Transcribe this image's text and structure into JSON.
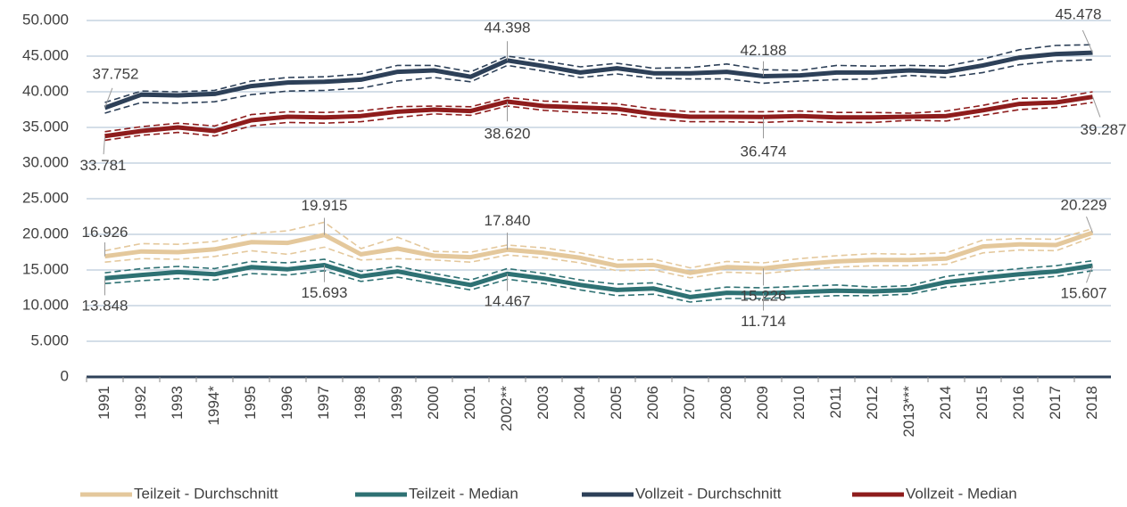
{
  "chart_data": {
    "type": "line",
    "categories": [
      "1991",
      "1992",
      "1993",
      "1994*",
      "1995",
      "1996",
      "1997",
      "1998",
      "1999",
      "2000",
      "2001",
      "2002**",
      "2003",
      "2004",
      "2005",
      "2006",
      "2007",
      "2008",
      "2009",
      "2010",
      "2011",
      "2012",
      "2013***",
      "2014",
      "2015",
      "2016",
      "2017",
      "2018"
    ],
    "ylim": [
      0,
      50000
    ],
    "yticks": [
      0,
      {
        "value": 5000,
        "label": "5.000"
      },
      {
        "value": 10000,
        "label": "10.000"
      },
      {
        "value": 15000,
        "label": "15.000"
      },
      {
        "value": 20000,
        "label": "20.000"
      },
      {
        "value": 25000,
        "label": "25.000"
      },
      {
        "value": 30000,
        "label": "30.000"
      },
      {
        "value": 35000,
        "label": "35.000"
      },
      {
        "value": 40000,
        "label": "40.000"
      },
      {
        "value": 45000,
        "label": "45.000"
      },
      {
        "value": 50000,
        "label": "50.000"
      }
    ],
    "grid": true,
    "series": [
      {
        "name": "Teilzeit - Durchschnitt",
        "color": "#e4c89c",
        "values": [
          16926,
          17600,
          17500,
          17900,
          18900,
          18800,
          19915,
          17200,
          18000,
          17000,
          16800,
          17840,
          17400,
          16700,
          15600,
          15700,
          14600,
          15400,
          15226,
          15800,
          16200,
          16400,
          16400,
          16600,
          18300,
          18600,
          18500,
          20229
        ],
        "upper": [
          17700,
          18700,
          18600,
          19000,
          20100,
          20500,
          21700,
          18000,
          19600,
          17600,
          17500,
          18500,
          18100,
          17400,
          16400,
          16500,
          15300,
          16200,
          16000,
          16600,
          17000,
          17300,
          17200,
          17400,
          19200,
          19400,
          19300,
          20800
        ],
        "lower": [
          16100,
          16600,
          16500,
          16900,
          17700,
          17200,
          18200,
          16400,
          16600,
          16400,
          16100,
          17100,
          16700,
          16000,
          14900,
          15000,
          13900,
          14700,
          14500,
          15000,
          15400,
          15600,
          15600,
          15800,
          17400,
          17800,
          17700,
          19600
        ],
        "value_labels": [
          "16.926",
          null,
          null,
          null,
          null,
          null,
          "19.915",
          null,
          null,
          null,
          null,
          "17.840",
          null,
          null,
          null,
          null,
          null,
          null,
          "15.226",
          null,
          null,
          null,
          null,
          null,
          null,
          null,
          null,
          "20.229"
        ]
      },
      {
        "name": "Teilzeit - Median",
        "color": "#2e7173",
        "values": [
          13848,
          14300,
          14700,
          14400,
          15400,
          15100,
          15693,
          14100,
          14800,
          13800,
          12900,
          14467,
          13800,
          12900,
          12200,
          12400,
          11200,
          11800,
          11714,
          11900,
          12100,
          12000,
          12200,
          13300,
          13900,
          14400,
          14800,
          15607
        ],
        "upper": [
          14600,
          15200,
          15500,
          15200,
          16200,
          16000,
          16500,
          14800,
          15500,
          14500,
          13600,
          15200,
          14500,
          13600,
          13000,
          13200,
          12000,
          12600,
          12500,
          12700,
          12900,
          12600,
          12800,
          14100,
          14700,
          15200,
          15600,
          16300
        ],
        "lower": [
          13100,
          13500,
          13800,
          13600,
          14500,
          14300,
          14900,
          13400,
          14000,
          13100,
          12200,
          13700,
          13100,
          12200,
          11400,
          11600,
          10500,
          11000,
          11000,
          11200,
          11400,
          11400,
          11600,
          12600,
          13100,
          13700,
          14100,
          14900
        ],
        "value_labels": [
          "13.848",
          null,
          null,
          null,
          null,
          null,
          "15.693",
          null,
          null,
          null,
          null,
          "14.467",
          null,
          null,
          null,
          null,
          null,
          null,
          "11.714",
          null,
          null,
          null,
          null,
          null,
          null,
          null,
          null,
          "15.607"
        ]
      },
      {
        "name": "Vollzeit - Durchschnitt",
        "color": "#2d4058",
        "values": [
          37752,
          39600,
          39500,
          39700,
          40800,
          41300,
          41400,
          41700,
          42800,
          43000,
          42100,
          44398,
          43600,
          42700,
          43300,
          42600,
          42600,
          42800,
          42188,
          42300,
          42700,
          42700,
          43000,
          42800,
          43700,
          44800,
          45300,
          45478
        ],
        "upper": [
          38500,
          40100,
          40000,
          40200,
          41500,
          42000,
          42100,
          42500,
          43700,
          43700,
          42800,
          45000,
          44300,
          43500,
          44000,
          43300,
          43400,
          43900,
          43100,
          43000,
          43700,
          43600,
          43700,
          43600,
          44600,
          45900,
          46500,
          46600
        ],
        "lower": [
          37000,
          38500,
          38400,
          38600,
          39600,
          40100,
          40200,
          40500,
          41500,
          42000,
          41400,
          43700,
          42900,
          42000,
          42500,
          41900,
          41800,
          41800,
          41200,
          41500,
          41700,
          41800,
          42300,
          42000,
          42700,
          43800,
          44300,
          44500
        ],
        "value_labels": [
          "37.752",
          null,
          null,
          null,
          null,
          null,
          null,
          null,
          null,
          null,
          null,
          "44.398",
          null,
          null,
          null,
          null,
          null,
          null,
          "42.188",
          null,
          null,
          null,
          null,
          null,
          null,
          null,
          null,
          "45.478"
        ]
      },
      {
        "name": "Vollzeit - Median",
        "color": "#8e1c1c",
        "values": [
          33781,
          34500,
          35000,
          34500,
          36000,
          36500,
          36400,
          36600,
          37200,
          37500,
          37300,
          38620,
          38000,
          37800,
          37600,
          36900,
          36500,
          36500,
          36474,
          36600,
          36400,
          36400,
          36500,
          36600,
          37400,
          38300,
          38500,
          39287
        ],
        "upper": [
          34400,
          35100,
          35600,
          35200,
          36800,
          37200,
          37100,
          37300,
          37900,
          38000,
          37900,
          39200,
          38700,
          38500,
          38300,
          37600,
          37200,
          37200,
          37200,
          37300,
          37100,
          37100,
          37000,
          37300,
          38100,
          39100,
          39100,
          40000
        ],
        "lower": [
          33200,
          33900,
          34300,
          33800,
          35200,
          35700,
          35600,
          35800,
          36400,
          36900,
          36700,
          38000,
          37400,
          37100,
          36900,
          36200,
          35800,
          35800,
          35700,
          35900,
          35700,
          35700,
          36000,
          35900,
          36700,
          37500,
          37800,
          38500
        ],
        "value_labels": [
          "33.781",
          null,
          null,
          null,
          null,
          null,
          null,
          null,
          null,
          null,
          null,
          "38.620",
          null,
          null,
          null,
          null,
          null,
          null,
          "36.474",
          null,
          null,
          null,
          null,
          null,
          null,
          null,
          null,
          "39.287"
        ]
      }
    ]
  }
}
